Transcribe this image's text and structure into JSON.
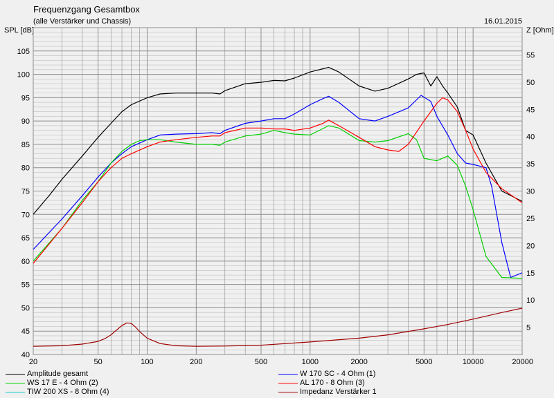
{
  "header": {
    "title": "Frequenzgang Gesamtbox",
    "subtitle": "(alle Verstärker und Chassis)",
    "date": "16.01.2015",
    "left_axis_label": "SPL [dB]",
    "right_axis_label": "Z [Ohm]"
  },
  "chart_data": {
    "type": "line",
    "x_scale": "log",
    "xlim": [
      20,
      20000
    ],
    "x_ticks": [
      20,
      50,
      100,
      200,
      500,
      1000,
      2000,
      5000,
      10000,
      20000
    ],
    "x_tick_labels": [
      "20",
      "50",
      "100",
      "200",
      "500",
      "1000",
      "2000",
      "5000",
      "10000",
      "20000"
    ],
    "y_left": {
      "label": "SPL [dB]",
      "lim": [
        40,
        110
      ],
      "ticks": [
        40,
        45,
        50,
        55,
        60,
        65,
        70,
        75,
        80,
        85,
        90,
        95,
        100,
        105
      ]
    },
    "y_right": {
      "label": "Z [Ohm]",
      "lim": [
        0,
        60
      ],
      "ticks": [
        5,
        10,
        15,
        20,
        25,
        30,
        35,
        40,
        45,
        50,
        55
      ]
    },
    "grid": true,
    "colors": {
      "background": "#f0f0f0",
      "plot_background": "#f0f0f0",
      "grid": "#8c8c8c"
    },
    "series": [
      {
        "name": "Amplitude gesamt",
        "color": "#000000",
        "axis": "left",
        "x": [
          20,
          25,
          30,
          40,
          50,
          60,
          70,
          80,
          100,
          120,
          150,
          200,
          250,
          280,
          300,
          400,
          500,
          600,
          700,
          800,
          1000,
          1200,
          1300,
          1500,
          2000,
          2500,
          3000,
          4000,
          4500,
          5000,
          5500,
          6000,
          6500,
          7000,
          8000,
          9000,
          10000,
          12000,
          15000,
          20000
        ],
        "y": [
          70,
          74,
          77.5,
          82.5,
          86.5,
          89.5,
          92,
          93.5,
          95,
          95.8,
          96,
          96,
          96,
          95.8,
          96.5,
          98,
          98.3,
          98.7,
          98.6,
          99.2,
          100.5,
          101.2,
          101.5,
          100.5,
          97.5,
          96.4,
          97,
          99,
          100,
          100.3,
          97.5,
          99.5,
          97.5,
          96,
          93,
          88,
          87,
          81,
          75,
          72.8
        ]
      },
      {
        "name": "W 170 SC - 4 Ohm (1)",
        "color": "#0000ff",
        "axis": "left",
        "x": [
          20,
          30,
          40,
          50,
          60,
          70,
          80,
          100,
          120,
          150,
          200,
          250,
          280,
          300,
          400,
          500,
          600,
          700,
          800,
          1000,
          1200,
          1300,
          1500,
          2000,
          2500,
          3000,
          4000,
          4800,
          5500,
          6000,
          7000,
          8000,
          9000,
          10000,
          12000,
          13000,
          15000,
          17000,
          20000
        ],
        "y": [
          62.5,
          69,
          74,
          78,
          81,
          83,
          84.5,
          86,
          87,
          87.2,
          87.3,
          87.5,
          87.3,
          88,
          89.5,
          90,
          90.5,
          90.5,
          91.5,
          93.5,
          94.8,
          95.3,
          94,
          90.5,
          90,
          91,
          92.8,
          95.5,
          94.2,
          91,
          87,
          83,
          81,
          80.7,
          80,
          76,
          64,
          56.5,
          57.5
        ]
      },
      {
        "name": "WS 17 E - 4 Ohm  (2)",
        "color": "#00d000",
        "axis": "left",
        "x": [
          20,
          30,
          40,
          50,
          60,
          70,
          80,
          90,
          100,
          120,
          150,
          200,
          250,
          280,
          300,
          400,
          500,
          600,
          700,
          800,
          1000,
          1200,
          1300,
          1500,
          2000,
          2500,
          3000,
          4000,
          4500,
          5000,
          6000,
          7000,
          8000,
          9000,
          10000,
          12000,
          15000,
          20000
        ],
        "y": [
          60,
          67,
          73,
          77,
          81,
          83.5,
          85,
          85.8,
          86,
          86,
          85.5,
          85,
          85,
          84.8,
          85.5,
          86.8,
          87.2,
          88,
          87.5,
          87.2,
          87,
          88.4,
          89,
          88.5,
          85.8,
          85.5,
          85.8,
          87.3,
          86,
          82,
          81.5,
          82.5,
          80.5,
          76,
          71,
          61,
          56.5,
          56.3
        ]
      },
      {
        "name": "AL 170 - 8 Ohm (3)",
        "color": "#ff0000",
        "axis": "left",
        "x": [
          20,
          30,
          40,
          50,
          60,
          70,
          80,
          100,
          120,
          150,
          200,
          250,
          280,
          300,
          400,
          500,
          600,
          700,
          800,
          1000,
          1200,
          1300,
          1500,
          2000,
          2500,
          3000,
          3500,
          4000,
          5000,
          6000,
          6500,
          7000,
          8000,
          9000,
          10000,
          12000,
          15000,
          20000
        ],
        "y": [
          59.5,
          67,
          72.5,
          77,
          80,
          82,
          83,
          84.5,
          85.5,
          86,
          86.5,
          86.8,
          86.8,
          87.5,
          88.5,
          88.5,
          88.3,
          88.3,
          88,
          88.5,
          89.5,
          90.2,
          89,
          86.5,
          84.5,
          83.8,
          83.5,
          85,
          90,
          93.8,
          95,
          94.5,
          92,
          88,
          84,
          79,
          75.5,
          72.5
        ]
      },
      {
        "name": "TIW 200 XS - 8 Ohm (4)",
        "color": "#00c8c8",
        "axis": "left",
        "x": [],
        "y": []
      },
      {
        "name": "Impedanz Verstärker 1",
        "color": "#a00000",
        "axis": "right",
        "x": [
          20,
          30,
          40,
          50,
          55,
          60,
          65,
          70,
          75,
          80,
          85,
          90,
          100,
          120,
          150,
          200,
          300,
          500,
          1000,
          2000,
          3000,
          5000,
          7000,
          10000,
          15000,
          20000
        ],
        "y": [
          1.5,
          1.6,
          1.9,
          2.4,
          2.9,
          3.6,
          4.5,
          5.3,
          5.8,
          5.7,
          5,
          4.2,
          3,
          2,
          1.6,
          1.5,
          1.55,
          1.7,
          2.3,
          3,
          3.6,
          4.7,
          5.5,
          6.5,
          7.7,
          8.5
        ]
      }
    ]
  }
}
